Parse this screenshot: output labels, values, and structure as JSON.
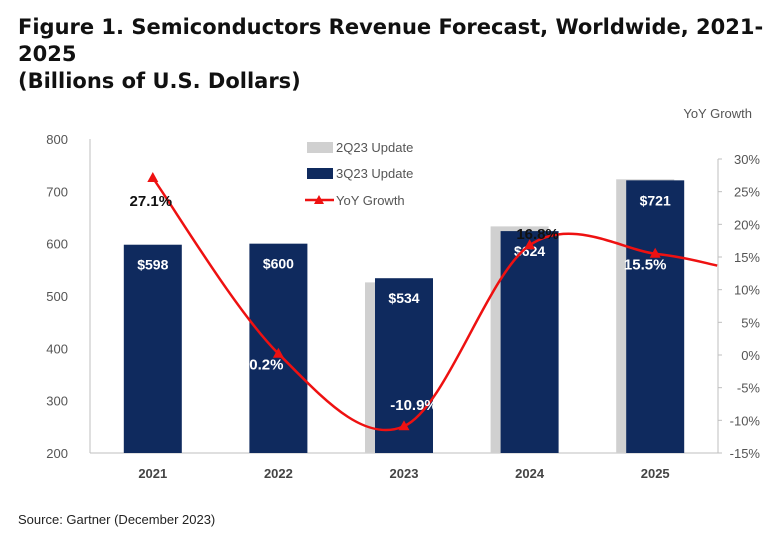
{
  "title_line1": "Figure 1. Semiconductors Revenue Forecast, Worldwide, 2021-2025",
  "title_line2": "(Billions of U.S. Dollars)",
  "source": "Source: Gartner (December 2023)",
  "chart_data": {
    "type": "bar",
    "categories": [
      "2021",
      "2022",
      "2023",
      "2024",
      "2025"
    ],
    "series": [
      {
        "name": "2Q23 Update",
        "type": "bar",
        "color": "#d0d0d0",
        "values": [
          null,
          null,
          526,
          633,
          723
        ]
      },
      {
        "name": "3Q23 Update",
        "type": "bar",
        "color": "#0f2a5e",
        "values": [
          598,
          600,
          534,
          624,
          721
        ],
        "labels": [
          "$598",
          "$600",
          "$534",
          "$624",
          "$721"
        ]
      },
      {
        "name": "YoY Growth",
        "type": "line",
        "axis": "secondary",
        "color": "#ee1111",
        "values": [
          27.1,
          0.2,
          -10.9,
          16.8,
          15.5
        ],
        "labels": [
          "27.1%",
          "0.2%",
          "-10.9%",
          "16.8%",
          "15.5%"
        ]
      }
    ],
    "ylim": [
      200,
      800
    ],
    "yticks": [
      200,
      300,
      400,
      500,
      600,
      700,
      800
    ],
    "y2label": "YoY Growth",
    "y2lim": [
      -15,
      30
    ],
    "y2ticks": [
      -15,
      -10,
      -5,
      0,
      5,
      10,
      15,
      20,
      25,
      30
    ],
    "y2tick_labels": [
      "-15%",
      "-10%",
      "-5%",
      "0%",
      "5%",
      "10%",
      "15%",
      "20%",
      "25%",
      "30%"
    ],
    "grid": false,
    "legend": "top-center"
  }
}
